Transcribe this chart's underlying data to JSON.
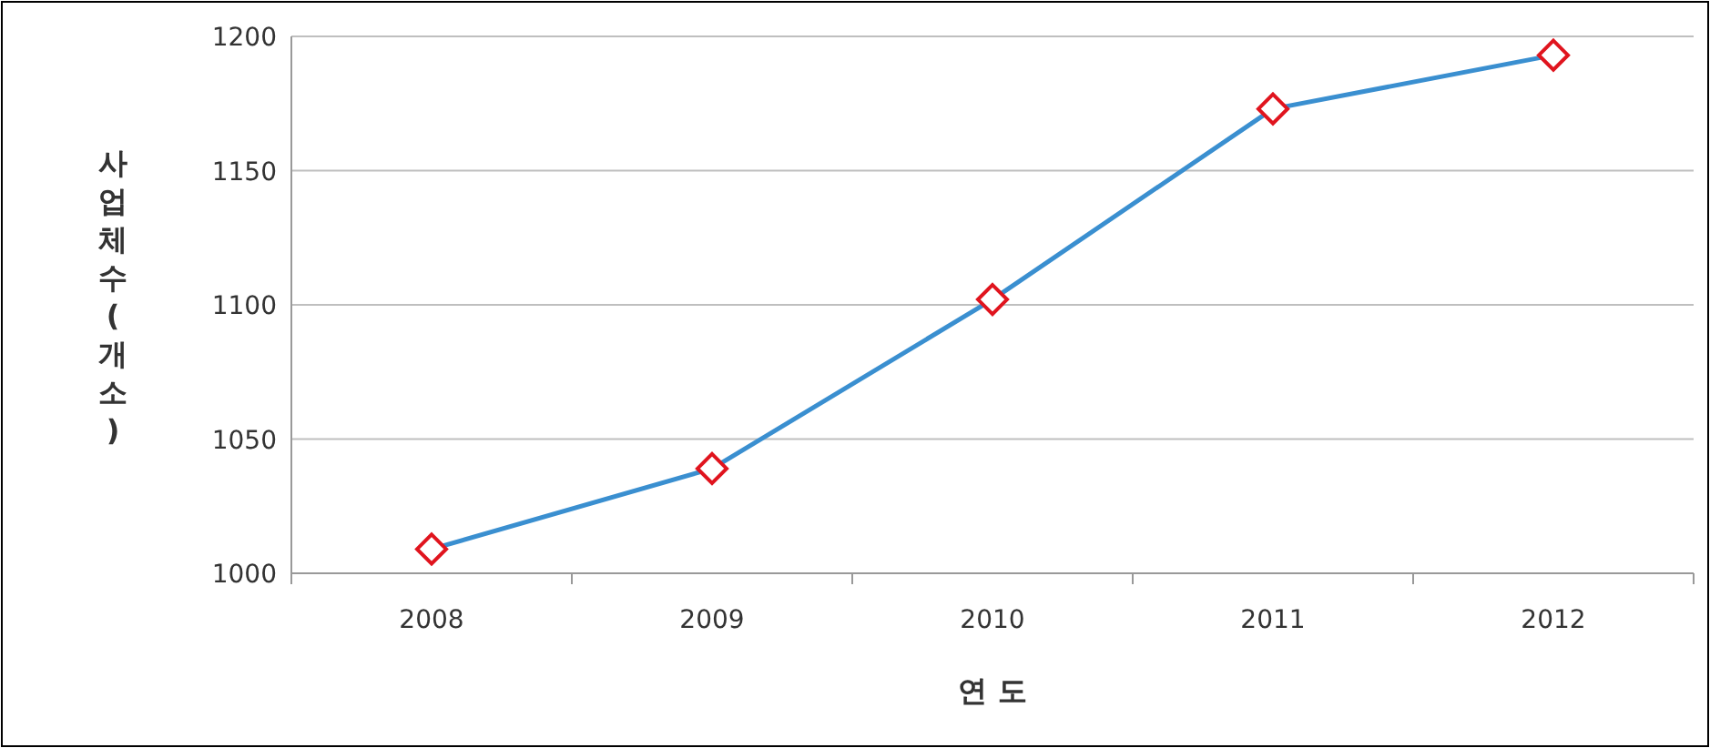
{
  "chart_data": {
    "type": "line",
    "xlabel": "연 도",
    "ylabel": "사업체수(개소)",
    "categories": [
      "2008",
      "2009",
      "2010",
      "2011",
      "2012"
    ],
    "series": [
      {
        "color": "#3a8fd0",
        "values": [
          1009,
          1039,
          1102,
          1173,
          1193
        ]
      }
    ],
    "ylim": [
      1000,
      1200
    ],
    "yticks": [
      1000,
      1050,
      1100,
      1150,
      1200
    ],
    "grid": "y",
    "marker": "diamond",
    "line_style": "solid"
  }
}
